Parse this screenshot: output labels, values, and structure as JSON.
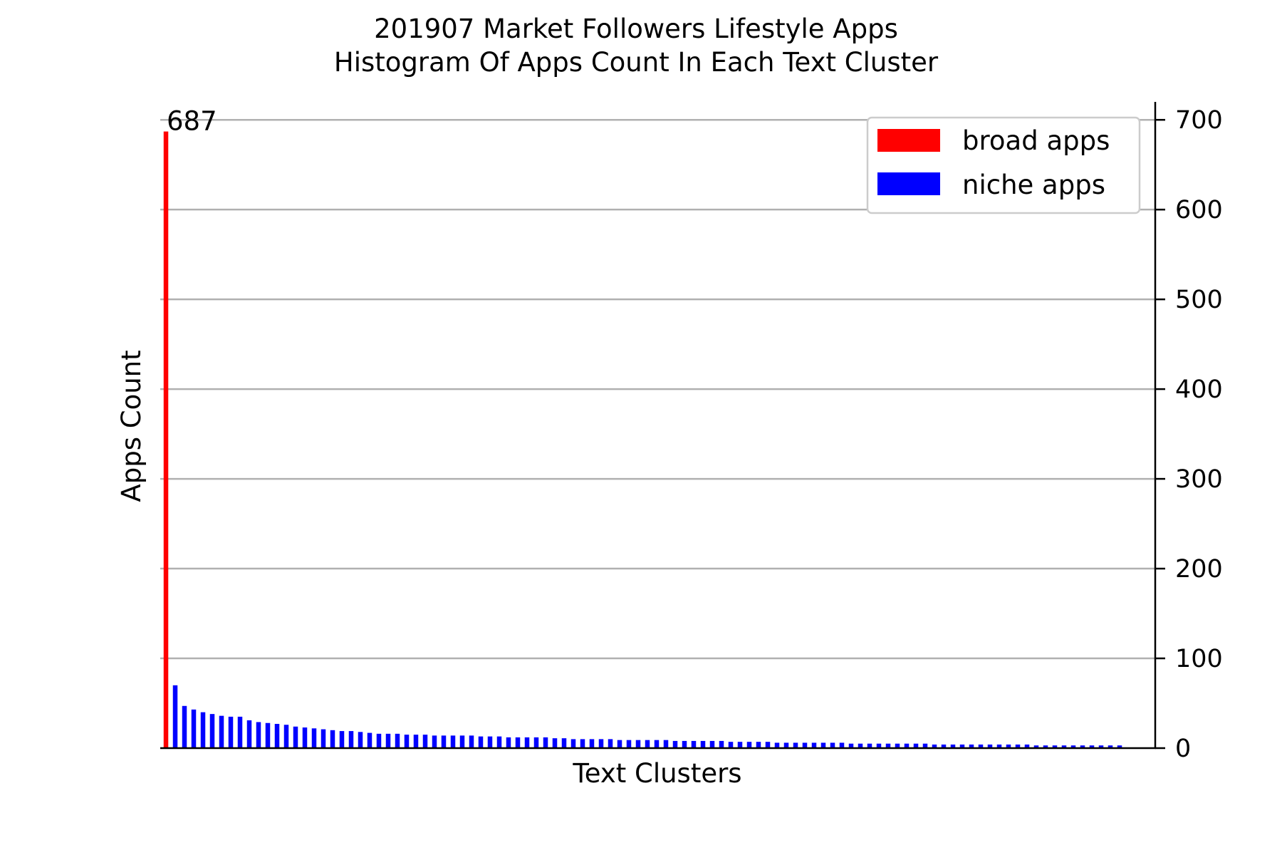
{
  "chart_data": {
    "type": "bar",
    "title": "201907 Market Followers Lifestyle Apps",
    "subtitle": "Histogram Of Apps Count In Each Text Cluster",
    "xlabel": "Text Clusters",
    "ylabel": "Apps Count",
    "ylim": [
      0,
      720
    ],
    "yticks": [
      0,
      100,
      200,
      300,
      400,
      500,
      600,
      700
    ],
    "y_axis_side": "right",
    "grid": "horizontal",
    "legend": {
      "placement": "top-right"
    },
    "colors": {
      "broad": "#ff0000",
      "niche": "#0000ff"
    },
    "series": [
      {
        "name": "broad apps",
        "values": [
          687
        ]
      },
      {
        "name": "niche apps",
        "values": [
          70,
          47,
          43,
          40,
          38,
          36,
          35,
          35,
          31,
          29,
          28,
          27,
          26,
          24,
          23,
          22,
          21,
          20,
          19,
          19,
          18,
          17,
          16,
          16,
          16,
          15,
          15,
          15,
          14,
          14,
          14,
          14,
          14,
          13,
          13,
          13,
          12,
          12,
          12,
          12,
          12,
          11,
          11,
          10,
          10,
          10,
          10,
          10,
          9,
          9,
          9,
          9,
          9,
          9,
          8,
          8,
          8,
          8,
          8,
          8,
          7,
          7,
          7,
          7,
          7,
          6,
          6,
          6,
          6,
          6,
          6,
          6,
          6,
          5,
          5,
          5,
          5,
          5,
          5,
          5,
          5,
          5,
          4,
          4,
          4,
          4,
          4,
          4,
          4,
          4,
          4,
          4,
          4,
          3,
          3,
          3,
          3,
          3,
          3,
          3,
          3,
          3,
          3
        ]
      }
    ],
    "annotations": [
      {
        "series": "broad apps",
        "index": 0,
        "text": "687"
      }
    ]
  }
}
